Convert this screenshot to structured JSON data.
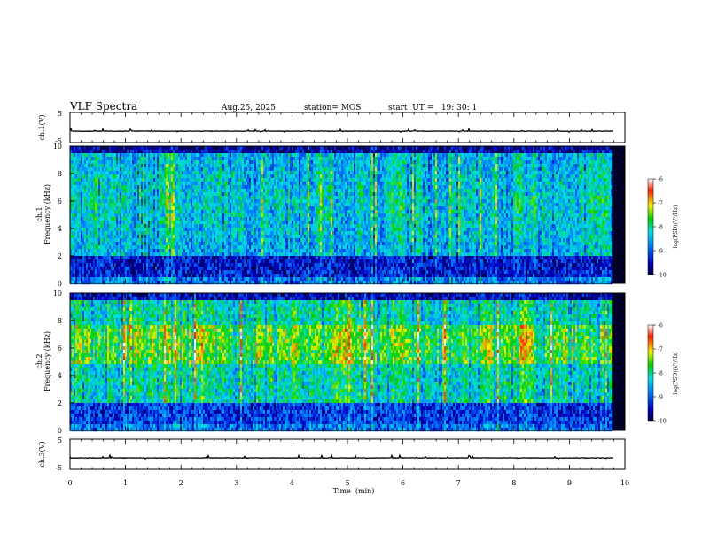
{
  "header": {
    "title": "VLF Spectra",
    "date": "Aug.25, 2025",
    "station": "station= MOS",
    "start_ut": "start  UT =   19: 30: 1"
  },
  "chart_data": [
    {
      "type": "line",
      "panel": "channel-1-waveform",
      "ylabel": "ch.1(V)",
      "y_ticks": [
        "5",
        "-5"
      ],
      "ylim": [
        -5,
        5
      ],
      "series": [
        {
          "values_approx": "flat near -1.2 V with small spikes"
        }
      ]
    },
    {
      "type": "heatmap",
      "panel": "channel-1-spectrogram",
      "ylabel": "ch.1\nFrequency (kHz)",
      "ylim": [
        0,
        10
      ],
      "y_ticks": [
        "0",
        "2",
        "4",
        "6",
        "8",
        "10"
      ],
      "colorbar": {
        "label": "log(PSD)(V²/Hz)",
        "ticks": [
          "-6",
          "-7",
          "-8",
          "-9",
          "-10"
        ],
        "range": [
          -10,
          -6
        ]
      }
    },
    {
      "type": "heatmap",
      "panel": "channel-2-spectrogram",
      "ylabel": "ch.2\nFrequency (kHz)",
      "ylim": [
        0,
        10
      ],
      "y_ticks": [
        "0",
        "2",
        "4",
        "6",
        "8",
        "10"
      ],
      "colorbar": {
        "label": "log(PSD)(V²/Hz)",
        "ticks": [
          "-6",
          "-7",
          "-8",
          "-9",
          "-10"
        ],
        "range": [
          -10,
          -6
        ]
      }
    },
    {
      "type": "line",
      "panel": "channel-3-waveform",
      "ylabel": "ch.3(V)",
      "y_ticks": [
        "5",
        "-5"
      ],
      "ylim": [
        -5,
        5
      ],
      "series": [
        {
          "values_approx": "flat near -1.2 V with small spikes"
        }
      ]
    }
  ],
  "x_axis": {
    "label": "Time  (min)",
    "xlim": [
      0,
      10
    ],
    "ticks": [
      "0",
      "1",
      "2",
      "3",
      "4",
      "5",
      "6",
      "7",
      "8",
      "9",
      "10"
    ],
    "data_end": 9.8
  }
}
